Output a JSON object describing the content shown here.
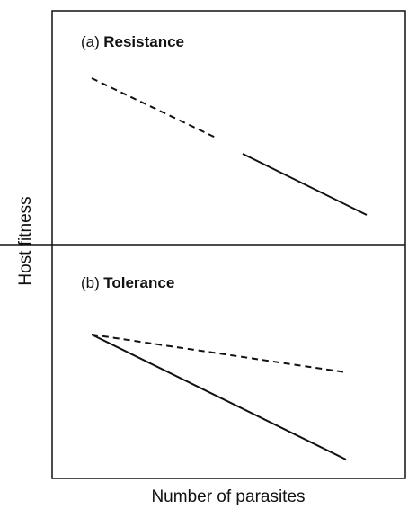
{
  "panels": [
    {
      "label": "(a)",
      "title": "Resistance"
    },
    {
      "label": "(b)",
      "title": "Tolerance"
    }
  ],
  "y_axis_label": "Host fitness",
  "x_axis_label": "Number of parasites"
}
